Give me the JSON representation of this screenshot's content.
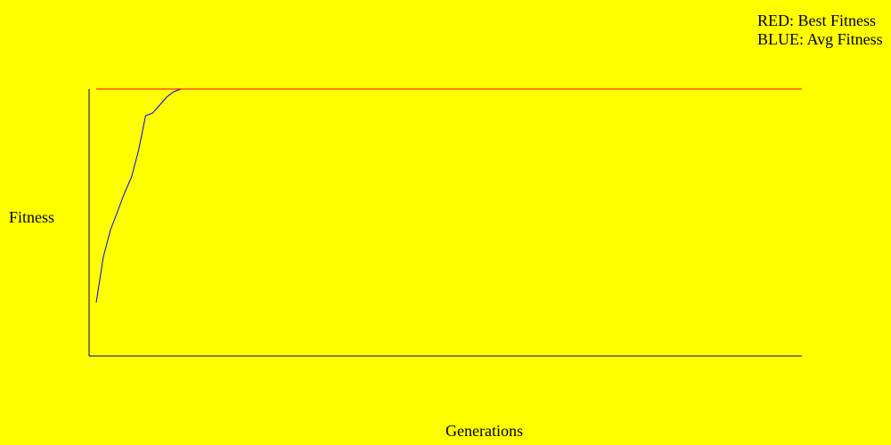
{
  "chart_data": {
    "type": "line",
    "title": "",
    "xlabel": "Generations",
    "ylabel": "Fitness",
    "legend": [
      {
        "label": "RED: Best Fitness",
        "color": "#ff0000"
      },
      {
        "label": "BLUE: Avg Fitness",
        "color": "#0000ff"
      }
    ],
    "xlim": [
      0,
      100
    ],
    "ylim": [
      0,
      1
    ],
    "series": [
      {
        "name": "Best Fitness",
        "color": "#ff0000",
        "x": [
          0,
          1,
          2,
          3,
          4,
          5,
          6,
          7,
          8,
          9,
          10,
          11,
          12,
          100
        ],
        "y": [
          1,
          1,
          1,
          1,
          1,
          1,
          1,
          1,
          1,
          1,
          1,
          1,
          1,
          1
        ]
      },
      {
        "name": "Avg Fitness",
        "color": "#0000ff",
        "x": [
          0,
          1,
          2,
          3,
          4,
          5,
          6,
          7,
          8,
          9,
          10,
          11,
          12,
          13,
          100
        ],
        "y": [
          0.2,
          0.37,
          0.47,
          0.54,
          0.61,
          0.67,
          0.77,
          0.9,
          0.91,
          0.94,
          0.97,
          0.99,
          1,
          1,
          1
        ]
      }
    ]
  }
}
